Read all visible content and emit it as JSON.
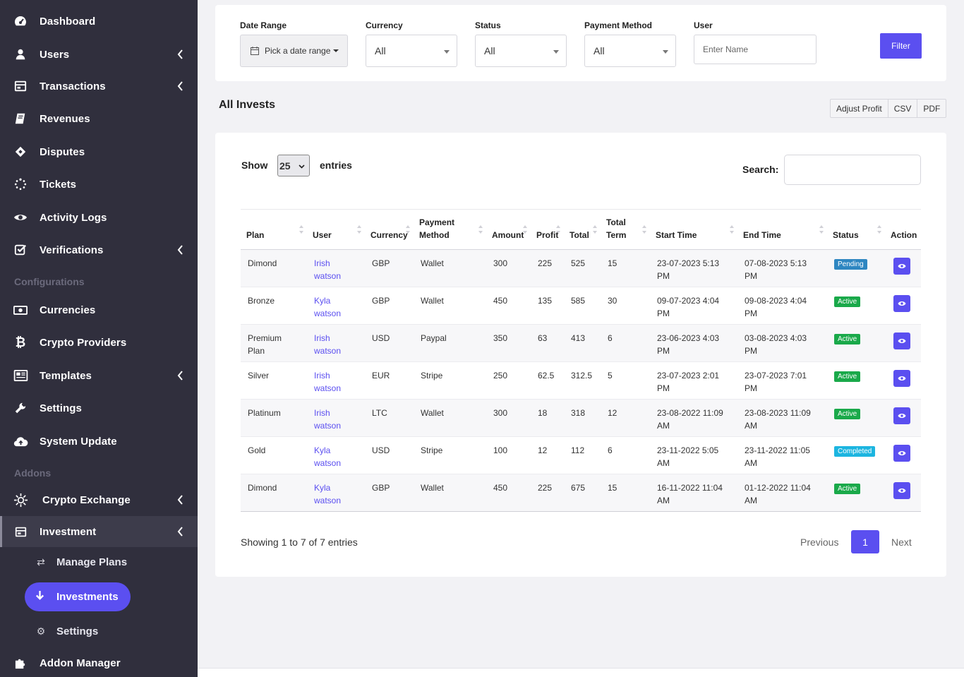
{
  "sidebar": {
    "items": [
      {
        "label": "Dashboard",
        "icon": "dashboard-icon"
      },
      {
        "label": "Users",
        "icon": "user-icon"
      },
      {
        "label": "Transactions",
        "icon": "transactions-icon"
      },
      {
        "label": "Revenues",
        "icon": "book-icon"
      },
      {
        "label": "Disputes",
        "icon": "ticket-icon"
      },
      {
        "label": "Tickets",
        "icon": "spinner-icon"
      },
      {
        "label": "Activity Logs",
        "icon": "eye-icon"
      },
      {
        "label": "Verifications",
        "icon": "checkbox-icon"
      }
    ],
    "section_configurations": "Configurations",
    "config_items": [
      {
        "label": "Currencies",
        "icon": "money-icon"
      },
      {
        "label": "Crypto Providers",
        "icon": "bitcoin-icon"
      },
      {
        "label": "Templates",
        "icon": "newspaper-icon"
      },
      {
        "label": "Settings",
        "icon": "wrench-icon"
      },
      {
        "label": "System Update",
        "icon": "cloud-upload-icon"
      }
    ],
    "section_addons": "Addons",
    "addon_items": [
      {
        "label": "Crypto Exchange",
        "icon": "exchange-icon"
      },
      {
        "label": "Investment",
        "icon": "investment-icon"
      }
    ],
    "sub_items": [
      {
        "label": "Manage Plans",
        "icon": "arrows-icon"
      },
      {
        "label": "Investments",
        "icon": "arrow-down-icon"
      },
      {
        "label": "Settings",
        "icon": "cogs-icon"
      }
    ],
    "addon_manager": {
      "label": "Addon Manager",
      "icon": "puzzle-icon"
    }
  },
  "filters": {
    "date_range_label": "Date Range",
    "date_range_value": "Pick a date range",
    "currency_label": "Currency",
    "currency_value": "All",
    "status_label": "Status",
    "status_value": "All",
    "payment_method_label": "Payment Method",
    "payment_method_value": "All",
    "user_label": "User",
    "user_placeholder": "Enter Name",
    "filter_button": "Filter"
  },
  "page": {
    "title": "All Invests",
    "actions": [
      "Adjust Profit",
      "CSV",
      "PDF"
    ]
  },
  "table": {
    "show_label": "Show",
    "entries_value": "25",
    "entries_label": "entries",
    "search_label": "Search:",
    "columns": [
      "Plan",
      "User",
      "Currency",
      "Payment Method",
      "Amount",
      "Profit",
      "Total",
      "Total Term",
      "Start Time",
      "End Time",
      "Status",
      "Action"
    ],
    "rows": [
      {
        "plan": "Dimond",
        "user": "Irish watson",
        "currency": "GBP",
        "method": "Wallet",
        "amount": "300",
        "profit": "225",
        "total": "525",
        "term": "15",
        "start": "23-07-2023 5:13 PM",
        "end": "07-08-2023 5:13 PM",
        "status": "Pending",
        "status_type": "pending"
      },
      {
        "plan": "Bronze",
        "user": "Kyla watson",
        "currency": "GBP",
        "method": "Wallet",
        "amount": "450",
        "profit": "135",
        "total": "585",
        "term": "30",
        "start": "09-07-2023 4:04 PM",
        "end": "09-08-2023 4:04 PM",
        "status": "Active",
        "status_type": "active"
      },
      {
        "plan": "Premium Plan",
        "user": "Irish watson",
        "currency": "USD",
        "method": "Paypal",
        "amount": "350",
        "profit": "63",
        "total": "413",
        "term": "6",
        "start": "23-06-2023 4:03 PM",
        "end": "03-08-2023 4:03 PM",
        "status": "Active",
        "status_type": "active"
      },
      {
        "plan": "Silver",
        "user": "Irish watson",
        "currency": "EUR",
        "method": "Stripe",
        "amount": "250",
        "profit": "62.5",
        "total": "312.5",
        "term": "5",
        "start": "23-07-2023 2:01 PM",
        "end": "23-07-2023 7:01 PM",
        "status": "Active",
        "status_type": "active"
      },
      {
        "plan": "Platinum",
        "user": "Irish watson",
        "currency": "LTC",
        "method": "Wallet",
        "amount": "300",
        "profit": "18",
        "total": "318",
        "term": "12",
        "start": "23-08-2022 11:09 AM",
        "end": "23-08-2023 11:09 AM",
        "status": "Active",
        "status_type": "active"
      },
      {
        "plan": "Gold",
        "user": "Kyla watson",
        "currency": "USD",
        "method": "Stripe",
        "amount": "100",
        "profit": "12",
        "total": "112",
        "term": "6",
        "start": "23-11-2022 5:05 AM",
        "end": "23-11-2022 11:05 AM",
        "status": "Completed",
        "status_type": "completed"
      },
      {
        "plan": "Dimond",
        "user": "Kyla watson",
        "currency": "GBP",
        "method": "Wallet",
        "amount": "450",
        "profit": "225",
        "total": "675",
        "term": "15",
        "start": "16-11-2022 11:04 AM",
        "end": "01-12-2022 11:04 AM",
        "status": "Active",
        "status_type": "active"
      }
    ],
    "info": "Showing 1 to 7 of 7 entries",
    "pagination": {
      "previous": "Previous",
      "page": "1",
      "next": "Next"
    }
  },
  "colors": {
    "sidebar_bg": "#302f3d",
    "accent": "#5b4ff0",
    "active_badge": "#1aa94a",
    "pending_badge": "#2e86c1",
    "completed_badge": "#1cb5e0"
  }
}
